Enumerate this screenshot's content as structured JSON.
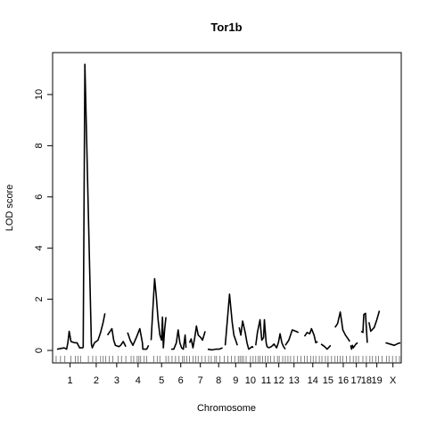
{
  "chart_data": {
    "type": "line",
    "title": "Tor1b",
    "xlabel": "Chromosome",
    "ylabel": "LOD score",
    "ylim": [
      0,
      11.5
    ],
    "yticks": [
      0,
      2,
      4,
      6,
      8,
      10
    ],
    "grid": false,
    "legend": "none",
    "color": "#000000",
    "x_axis_positions": [
      0,
      460
    ],
    "chromosomes": [
      {
        "label": "1",
        "start": 3,
        "end": 33,
        "points": [
          [
            3,
            0.05
          ],
          [
            8,
            0.08
          ],
          [
            11,
            0.1
          ],
          [
            14,
            0.05
          ],
          [
            15.5,
            0.3
          ],
          [
            17,
            0.75
          ],
          [
            19,
            0.35
          ],
          [
            23,
            0.3
          ],
          [
            26,
            0.3
          ],
          [
            29,
            0.1
          ],
          [
            33,
            0.1
          ]
        ]
      },
      {
        "label": "",
        "start": 33,
        "end": 40,
        "points": [
          [
            33,
            0.1
          ],
          [
            35,
            11.2
          ]
        ]
      },
      {
        "label": "2",
        "start": 35,
        "end": 61,
        "points": [
          [
            35,
            11.2
          ],
          [
            42.5,
            0.25
          ],
          [
            43.5,
            0.1
          ],
          [
            46,
            0.3
          ],
          [
            50,
            0.4
          ],
          [
            53,
            0.7
          ],
          [
            56,
            1.1
          ],
          [
            58,
            1.45
          ]
        ]
      },
      {
        "label": "3",
        "start": 61,
        "end": 82,
        "points": [
          [
            61,
            0.6
          ],
          [
            66,
            0.85
          ],
          [
            68,
            0.4
          ],
          [
            70,
            0.2
          ],
          [
            74,
            0.15
          ],
          [
            76,
            0.2
          ],
          [
            79,
            0.35
          ],
          [
            82,
            0.15
          ]
        ]
      },
      {
        "label": "4",
        "start": 84,
        "end": 108,
        "points": [
          [
            84,
            0.7
          ],
          [
            87,
            0.4
          ],
          [
            90,
            0.2
          ],
          [
            94,
            0.5
          ],
          [
            98,
            0.85
          ],
          [
            101,
            0.3
          ],
          [
            101.5,
            0.05
          ],
          [
            106,
            0.05
          ],
          [
            108,
            0.2
          ]
        ]
      },
      {
        "label": "5",
        "start": 111,
        "end": 135,
        "points": [
          [
            111,
            0.4
          ],
          [
            113,
            1.6
          ],
          [
            115,
            2.8
          ],
          [
            117,
            2.1
          ],
          [
            119,
            1.2
          ],
          [
            121,
            0.6
          ],
          [
            123,
            0.4
          ],
          [
            124,
            1.3
          ],
          [
            125,
            0.1
          ],
          [
            126.5,
            0.8
          ],
          [
            128,
            1.3
          ]
        ]
      },
      {
        "label": "6",
        "start": 134,
        "end": 156,
        "points": [
          [
            134,
            0.05
          ],
          [
            137,
            0.05
          ],
          [
            140,
            0.3
          ],
          [
            142,
            0.8
          ],
          [
            144,
            0.3
          ],
          [
            146,
            0.1
          ],
          [
            148,
            0.05
          ],
          [
            150,
            0.6
          ],
          [
            151,
            0.1
          ]
        ]
      },
      {
        "label": "7",
        "start": 155,
        "end": 180,
        "points": [
          [
            155,
            0.3
          ],
          [
            157,
            0.45
          ],
          [
            159,
            0.1
          ],
          [
            161,
            0.5
          ],
          [
            163,
            0.95
          ],
          [
            165,
            0.6
          ],
          [
            168,
            0.5
          ],
          [
            170,
            0.4
          ],
          [
            173,
            0.75
          ]
        ]
      },
      {
        "label": "8",
        "start": 176,
        "end": 201,
        "points": [
          [
            176,
            0.05
          ],
          [
            181,
            0.02
          ],
          [
            185,
            0.05
          ],
          [
            189,
            0.05
          ],
          [
            193,
            0.1
          ]
        ]
      },
      {
        "label": "9",
        "start": 196,
        "end": 220,
        "points": [
          [
            196,
            0.2
          ],
          [
            199,
            1.4
          ],
          [
            201,
            2.2
          ],
          [
            204,
            1.1
          ],
          [
            206,
            0.6
          ],
          [
            208,
            0.4
          ],
          [
            210,
            0.2
          ]
        ]
      },
      {
        "label": "10",
        "start": 212,
        "end": 238,
        "points": [
          [
            212,
            0.9
          ],
          [
            214,
            0.6
          ],
          [
            216,
            1.15
          ],
          [
            219,
            0.7
          ],
          [
            221,
            0.3
          ],
          [
            223,
            0.05
          ],
          [
            227,
            0.15
          ],
          [
            228,
            0.1
          ]
        ]
      },
      {
        "label": "11",
        "start": 231,
        "end": 255,
        "points": [
          [
            231,
            0.2
          ],
          [
            233,
            0.7
          ],
          [
            236,
            1.2
          ],
          [
            238,
            0.4
          ],
          [
            240,
            0.5
          ],
          [
            241,
            1.2
          ],
          [
            243,
            0.3
          ],
          [
            244,
            0.15
          ],
          [
            246,
            0.1
          ]
        ]
      },
      {
        "label": "12",
        "start": 246,
        "end": 269,
        "points": [
          [
            246,
            0.1
          ],
          [
            249,
            0.15
          ],
          [
            252,
            0.25
          ],
          [
            255,
            0.1
          ],
          [
            257,
            0.3
          ],
          [
            259,
            0.65
          ],
          [
            261,
            0.3
          ],
          [
            263,
            0.15
          ],
          [
            265,
            0.05
          ]
        ]
      },
      {
        "label": "13",
        "start": 265,
        "end": 285,
        "points": [
          [
            265,
            0.2
          ],
          [
            269,
            0.4
          ],
          [
            273,
            0.8
          ],
          [
            277,
            0.75
          ],
          [
            280,
            0.7
          ]
        ]
      },
      {
        "label": "14",
        "start": 287,
        "end": 306,
        "points": [
          [
            287,
            0.55
          ],
          [
            290,
            0.7
          ],
          [
            293,
            0.65
          ],
          [
            295,
            0.85
          ],
          [
            298,
            0.6
          ],
          [
            300,
            0.3
          ],
          [
            302,
            0.35
          ]
        ]
      },
      {
        "label": "15",
        "start": 306,
        "end": 322,
        "points": [
          [
            306,
            0.25
          ],
          [
            310,
            0.15
          ],
          [
            313,
            0.05
          ],
          [
            317,
            0.2
          ]
        ]
      },
      {
        "label": "16",
        "start": 322,
        "end": 341,
        "points": [
          [
            322,
            0.9
          ],
          [
            325,
            1.05
          ],
          [
            328,
            1.5
          ],
          [
            331,
            0.8
          ],
          [
            334,
            0.6
          ],
          [
            337,
            0.45
          ],
          [
            339,
            0.35
          ]
        ]
      },
      {
        "label": "17",
        "start": 340,
        "end": 353,
        "points": [
          [
            340,
            0.2
          ],
          [
            341,
            0.05
          ],
          [
            342,
            0.2
          ],
          [
            343,
            0.1
          ],
          [
            346,
            0.25
          ],
          [
            348,
            0.3
          ]
        ]
      },
      {
        "label": "18",
        "start": 352,
        "end": 364,
        "points": [
          [
            352,
            0.75
          ],
          [
            354,
            0.7
          ],
          [
            355,
            1.4
          ],
          [
            357,
            1.45
          ],
          [
            359,
            0.3
          ]
        ]
      },
      {
        "label": "19",
        "start": 361,
        "end": 379,
        "points": [
          [
            361,
            1.1
          ],
          [
            363,
            0.75
          ],
          [
            367,
            0.9
          ],
          [
            370,
            1.2
          ],
          [
            373,
            1.55
          ]
        ]
      },
      {
        "label": "X",
        "start": 380,
        "end": 397,
        "points": [
          [
            380,
            0.3
          ],
          [
            385,
            0.25
          ],
          [
            390,
            0.2
          ],
          [
            393,
            0.25
          ],
          [
            397,
            0.3
          ]
        ]
      }
    ],
    "markers": [
      2,
      7,
      12,
      19,
      24,
      27,
      30,
      39,
      44,
      48,
      53,
      56,
      59,
      63,
      67,
      73,
      77,
      82,
      88,
      91,
      95,
      97,
      99,
      103,
      106,
      114,
      118,
      121,
      128,
      131,
      135,
      139,
      143,
      147,
      149,
      152,
      155,
      159,
      162,
      165,
      169,
      173,
      177,
      180,
      184,
      186,
      190,
      195,
      199,
      203,
      207,
      211,
      213,
      215,
      217,
      220,
      225,
      228,
      231,
      234,
      236,
      239,
      242,
      245,
      248,
      252,
      256,
      258,
      262,
      265,
      268,
      271,
      275,
      279,
      283,
      287,
      290,
      294,
      297,
      300,
      304,
      307,
      311,
      314,
      318,
      322,
      325,
      328,
      331,
      335,
      339,
      343,
      346,
      349,
      354,
      358,
      362,
      365,
      369,
      372,
      376,
      381,
      384,
      388,
      392,
      396
    ]
  }
}
